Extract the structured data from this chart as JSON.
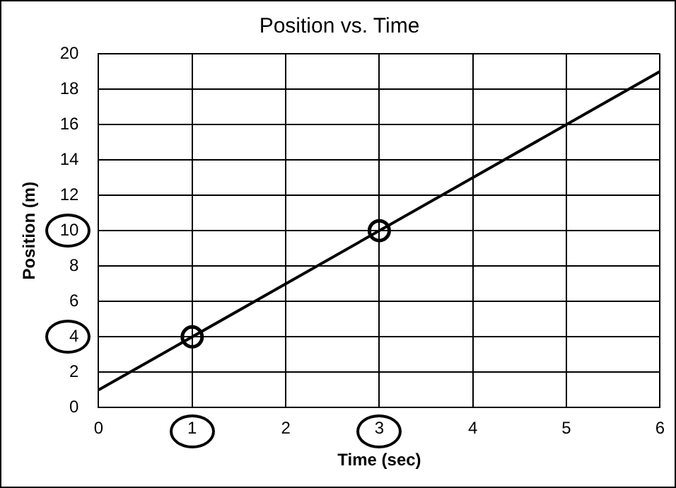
{
  "chart_data": {
    "type": "line",
    "title": "Position vs. Time",
    "xlabel": "Time (sec)",
    "ylabel": "Position (m)",
    "xlim": [
      0,
      6
    ],
    "xticks": [
      0,
      1,
      2,
      3,
      4,
      5,
      6
    ],
    "ylim": [
      0,
      20
    ],
    "yticks": [
      0,
      2,
      4,
      6,
      8,
      10,
      12,
      14,
      16,
      18,
      20
    ],
    "grid": true,
    "legend": false,
    "series": [
      {
        "type": "line",
        "color": "#000000",
        "x": [
          0,
          6
        ],
        "values": [
          1,
          19
        ],
        "marker": "none"
      },
      {
        "type": "scatter",
        "color": "#000000",
        "x": [
          1,
          3
        ],
        "values": [
          4,
          10
        ],
        "marker": "circle"
      }
    ]
  }
}
